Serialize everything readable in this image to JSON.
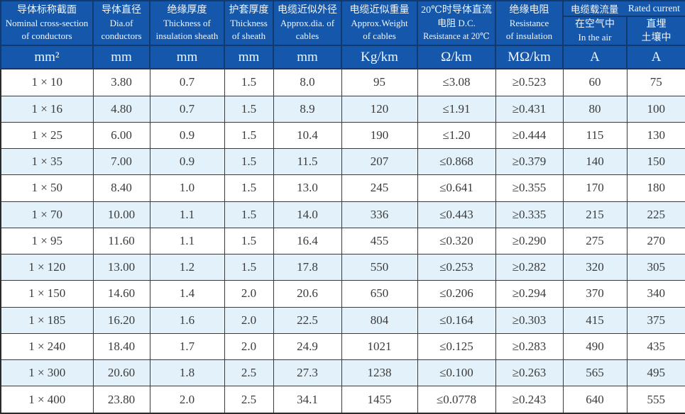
{
  "colors": {
    "header_bg": "#1557ab",
    "header_grid": "#123a6e",
    "header_text": "#f2f6fb",
    "row_bg": "#ffffff",
    "row_alt_bg": "#e2f1fa",
    "body_text": "#3b3b3b",
    "grid_line": "#3a3a3a"
  },
  "chart_data": {
    "type": "table",
    "columns": [
      {
        "zh": "导体标称截面",
        "en1": "Nominal cross-section",
        "en2": "of conductors",
        "unit": "mm²"
      },
      {
        "zh": "导体直径",
        "en1": "Dia.of",
        "en2": "conductors",
        "unit": "mm"
      },
      {
        "zh": "绝缘厚度",
        "en1": "Thickness of",
        "en2": "insulation sheath",
        "unit": "mm"
      },
      {
        "zh": "护套厚度",
        "en1": "Thickness",
        "en2": "of sheath",
        "unit": "mm"
      },
      {
        "zh": "电缆近似外径",
        "en1": "Approx.dia. of",
        "en2": "cables",
        "unit": "mm"
      },
      {
        "zh": "电缆近似重量",
        "en1": "Approx.Weight",
        "en2": "of cables",
        "unit": "Kg/km"
      },
      {
        "zh": "20℃时导体直流",
        "en1": "电阻 D.C.",
        "en2": "Resistance at 20℃",
        "unit": "Ω/km"
      },
      {
        "zh": "绝缘电阻",
        "en1": "Resistance",
        "en2": "of insulation",
        "unit": "MΩ/km"
      }
    ],
    "group_header": {
      "zh": "电缆载流量",
      "en": "Rated current"
    },
    "sub_columns": [
      {
        "zh": "在空气中",
        "en": "In the air",
        "unit": "A"
      },
      {
        "zh": "直埋",
        "en": "土壤中",
        "unit": "A"
      }
    ],
    "rows": [
      [
        "1 × 10",
        "3.80",
        "0.7",
        "1.5",
        "8.0",
        "95",
        "≤3.08",
        "≥0.523",
        "60",
        "75"
      ],
      [
        "1 × 16",
        "4.80",
        "0.7",
        "1.5",
        "8.9",
        "120",
        "≤1.91",
        "≥0.431",
        "80",
        "100"
      ],
      [
        "1 × 25",
        "6.00",
        "0.9",
        "1.5",
        "10.4",
        "190",
        "≤1.20",
        "≥0.444",
        "115",
        "130"
      ],
      [
        "1 × 35",
        "7.00",
        "0.9",
        "1.5",
        "11.5",
        "207",
        "≤0.868",
        "≥0.379",
        "140",
        "150"
      ],
      [
        "1 × 50",
        "8.40",
        "1.0",
        "1.5",
        "13.0",
        "245",
        "≤0.641",
        "≥0.355",
        "170",
        "180"
      ],
      [
        "1 × 70",
        "10.00",
        "1.1",
        "1.5",
        "14.0",
        "336",
        "≤0.443",
        "≥0.335",
        "215",
        "225"
      ],
      [
        "1 × 95",
        "11.60",
        "1.1",
        "1.5",
        "16.4",
        "455",
        "≤0.320",
        "≥0.290",
        "275",
        "270"
      ],
      [
        "1 × 120",
        "13.00",
        "1.2",
        "1.5",
        "17.8",
        "550",
        "≤0.253",
        "≥0.282",
        "320",
        "305"
      ],
      [
        "1 × 150",
        "14.60",
        "1.4",
        "2.0",
        "20.6",
        "650",
        "≤0.206",
        "≥0.294",
        "370",
        "340"
      ],
      [
        "1 × 185",
        "16.20",
        "1.6",
        "2.0",
        "22.5",
        "804",
        "≤0.164",
        "≥0.303",
        "415",
        "375"
      ],
      [
        "1 × 240",
        "18.40",
        "1.7",
        "2.0",
        "24.9",
        "1021",
        "≤0.125",
        "≥0.283",
        "490",
        "435"
      ],
      [
        "1 × 300",
        "20.60",
        "1.8",
        "2.5",
        "27.3",
        "1238",
        "≤0.100",
        "≥0.263",
        "565",
        "495"
      ],
      [
        "1 × 400",
        "23.80",
        "2.0",
        "2.5",
        "34.1",
        "1455",
        "≤0.0778",
        "≥0.243",
        "640",
        "555"
      ]
    ]
  }
}
